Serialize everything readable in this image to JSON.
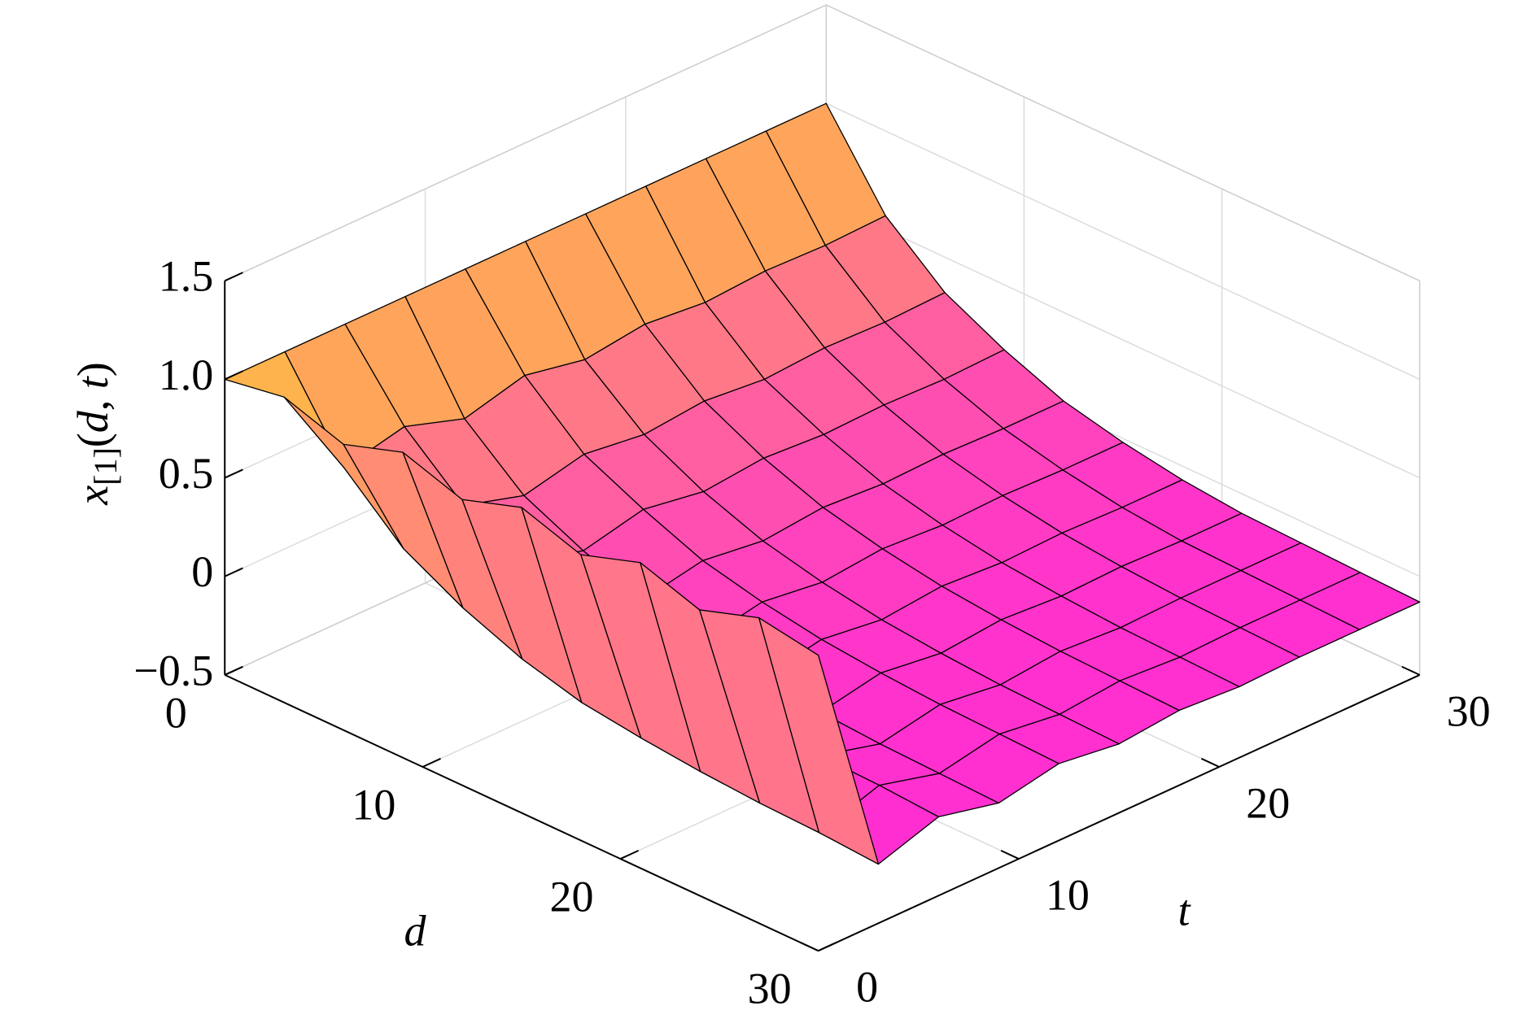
{
  "chart_data": {
    "type": "surface",
    "xlabel": "d",
    "ylabel": "t",
    "zlabel": [
      "x",
      "[1]",
      "(",
      "d",
      ", ",
      "t",
      ")"
    ],
    "x": [
      0,
      3,
      6,
      9,
      12,
      15,
      18,
      21,
      24,
      27,
      30
    ],
    "y": [
      0,
      3,
      6,
      9,
      12,
      15,
      18,
      21,
      24,
      27,
      30
    ],
    "z": [
      [
        1.0,
        1.0,
        1.0,
        1.0,
        1.0,
        1.0,
        1.0,
        1.0,
        1.0,
        1.0,
        1.0
      ],
      [
        1.05,
        0.55,
        0.62,
        0.52,
        0.6,
        0.54,
        0.58,
        0.55,
        0.57,
        0.56,
        0.57
      ],
      [
        0.95,
        0.28,
        0.36,
        0.27,
        0.34,
        0.3,
        0.33,
        0.3,
        0.32,
        0.31,
        0.32
      ],
      [
        1.05,
        0.12,
        0.22,
        0.13,
        0.2,
        0.15,
        0.18,
        0.16,
        0.17,
        0.16,
        0.17
      ],
      [
        0.95,
        0.0,
        0.1,
        0.02,
        0.08,
        0.04,
        0.07,
        0.05,
        0.06,
        0.05,
        0.05
      ],
      [
        1.05,
        -0.08,
        0.03,
        -0.05,
        0.01,
        -0.03,
        0.0,
        -0.02,
        -0.01,
        -0.02,
        -0.02
      ],
      [
        0.95,
        -0.12,
        -0.02,
        -0.1,
        -0.04,
        -0.08,
        -0.05,
        -0.07,
        -0.06,
        -0.07,
        -0.07
      ],
      [
        1.05,
        -0.15,
        -0.05,
        -0.13,
        -0.07,
        -0.11,
        -0.08,
        -0.1,
        -0.09,
        -0.1,
        -0.1
      ],
      [
        0.95,
        -0.17,
        -0.07,
        -0.15,
        -0.09,
        -0.13,
        -0.1,
        -0.12,
        -0.11,
        -0.11,
        -0.11
      ],
      [
        1.05,
        -0.18,
        -0.08,
        -0.16,
        -0.1,
        -0.14,
        -0.11,
        -0.13,
        -0.12,
        -0.12,
        -0.12
      ],
      [
        1.0,
        -0.2,
        -0.1,
        -0.17,
        -0.11,
        -0.15,
        -0.12,
        -0.14,
        -0.13,
        -0.13,
        -0.13
      ]
    ],
    "xlim": [
      0,
      30
    ],
    "xticks": [
      0,
      10,
      20,
      30
    ],
    "ylim": [
      0,
      30
    ],
    "yticks": [
      0,
      10,
      20,
      30
    ],
    "zlim": [
      -0.5,
      1.5
    ],
    "zticks": [
      {
        "value": -0.5,
        "label": "−0.5"
      },
      0,
      0.5,
      {
        "value": 1,
        "label": "1.0"
      },
      1.5
    ],
    "grid": true,
    "colormap": "spring",
    "edgecolor": "#000000"
  }
}
